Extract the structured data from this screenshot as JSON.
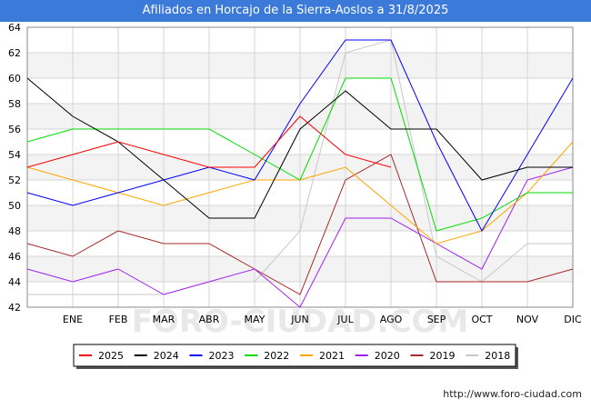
{
  "header": {
    "title": "Afiliados en Horcajo de la Sierra-Aoslos a 31/8/2025"
  },
  "footer": {
    "url": "http://www.foro-ciudad.com"
  },
  "watermark": "FORO-CIUDAD.COM",
  "chart_data": {
    "type": "line",
    "title": "Afiliados en Horcajo de la Sierra-Aoslos a 31/8/2025",
    "xlabel": "",
    "ylabel": "",
    "x": [
      "",
      "ENE",
      "FEB",
      "MAR",
      "ABR",
      "MAY",
      "JUN",
      "JUL",
      "AGO",
      "SEP",
      "OCT",
      "NOV",
      "DIC"
    ],
    "ylim": [
      42,
      64
    ],
    "yticks": [
      42,
      44,
      46,
      48,
      50,
      52,
      54,
      56,
      58,
      60,
      62,
      64
    ],
    "grid": true,
    "legend_position": "bottom",
    "series": [
      {
        "name": "2025",
        "color": "#ff0000",
        "values": [
          53,
          54,
          55,
          54,
          53,
          53,
          57,
          54,
          53,
          null,
          null,
          null,
          null
        ]
      },
      {
        "name": "2024",
        "color": "#000000",
        "values": [
          60,
          57,
          55,
          52,
          49,
          49,
          56,
          59,
          56,
          56,
          52,
          53,
          53
        ]
      },
      {
        "name": "2023",
        "color": "#0000ff",
        "values": [
          51,
          50,
          51,
          52,
          53,
          52,
          58,
          63,
          63,
          55,
          48,
          54,
          60
        ]
      },
      {
        "name": "2022",
        "color": "#00dd00",
        "values": [
          55,
          56,
          56,
          56,
          56,
          54,
          52,
          60,
          60,
          48,
          49,
          51,
          51
        ]
      },
      {
        "name": "2021",
        "color": "#ffa500",
        "values": [
          53,
          52,
          51,
          50,
          51,
          52,
          52,
          53,
          50,
          47,
          48,
          51,
          55
        ]
      },
      {
        "name": "2020",
        "color": "#a020f0",
        "values": [
          45,
          44,
          45,
          43,
          44,
          45,
          42,
          49,
          49,
          47,
          45,
          52,
          53
        ]
      },
      {
        "name": "2019",
        "color": "#a52a2a",
        "values": [
          47,
          46,
          48,
          47,
          47,
          45,
          43,
          52,
          54,
          44,
          44,
          44,
          45
        ]
      },
      {
        "name": "2018",
        "color": "#c8c8c8",
        "values": [
          43,
          43,
          43,
          43,
          44,
          44,
          48,
          62,
          63,
          46,
          44,
          47,
          47
        ]
      }
    ]
  }
}
